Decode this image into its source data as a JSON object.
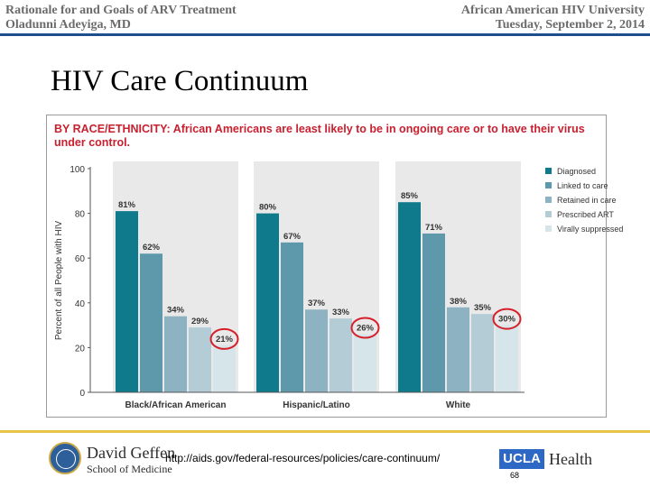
{
  "header": {
    "left_line1": "Rationale for and Goals of ARV Treatment",
    "left_line2": "Oladunni Adeyiga, MD",
    "right_line1": "African American HIV University",
    "right_line2": "Tuesday, September 2, 2014"
  },
  "slide_title": "HIV Care Continuum",
  "footer": {
    "link": "http://aids.gov/federal-resources/policies/care-continuum/",
    "page_number": "68",
    "school_line1": "David Geffen",
    "school_line2": "School of Medicine",
    "ucla": "UCLA",
    "health": "Health"
  },
  "chart_data": {
    "type": "bar",
    "title": "BY RACE/ETHNICITY: African Americans are least likely to be in ongoing care or to have their virus under control.",
    "ylabel": "Percent of all People with HIV",
    "xlabel": "",
    "ylim": [
      0,
      100
    ],
    "yticks": [
      0,
      20,
      40,
      60,
      80,
      100
    ],
    "grid": false,
    "legend_position": "right",
    "categories": [
      "Black/African American",
      "Hispanic/Latino",
      "White"
    ],
    "series": [
      {
        "name": "Diagnosed",
        "color": "#0e7a8c",
        "values": [
          81,
          80,
          85
        ]
      },
      {
        "name": "Linked to care",
        "color": "#5e98ab",
        "values": [
          62,
          67,
          71
        ]
      },
      {
        "name": "Retained in care",
        "color": "#8db2c1",
        "values": [
          34,
          37,
          38
        ]
      },
      {
        "name": "Prescribed ART",
        "color": "#b3ccd6",
        "values": [
          29,
          33,
          35
        ]
      },
      {
        "name": "Virally suppressed",
        "color": "#d6e5ea",
        "values": [
          21,
          26,
          30
        ]
      }
    ],
    "value_labels": [
      [
        "81%",
        "62%",
        "34%",
        "29%",
        "21%"
      ],
      [
        "80%",
        "67%",
        "37%",
        "33%",
        "26%"
      ],
      [
        "85%",
        "71%",
        "38%",
        "35%",
        "30%"
      ]
    ],
    "highlight_circle_color": "#d71f2a",
    "highlighted_series": "Virally suppressed",
    "panel_color": "#e9e9e9"
  }
}
